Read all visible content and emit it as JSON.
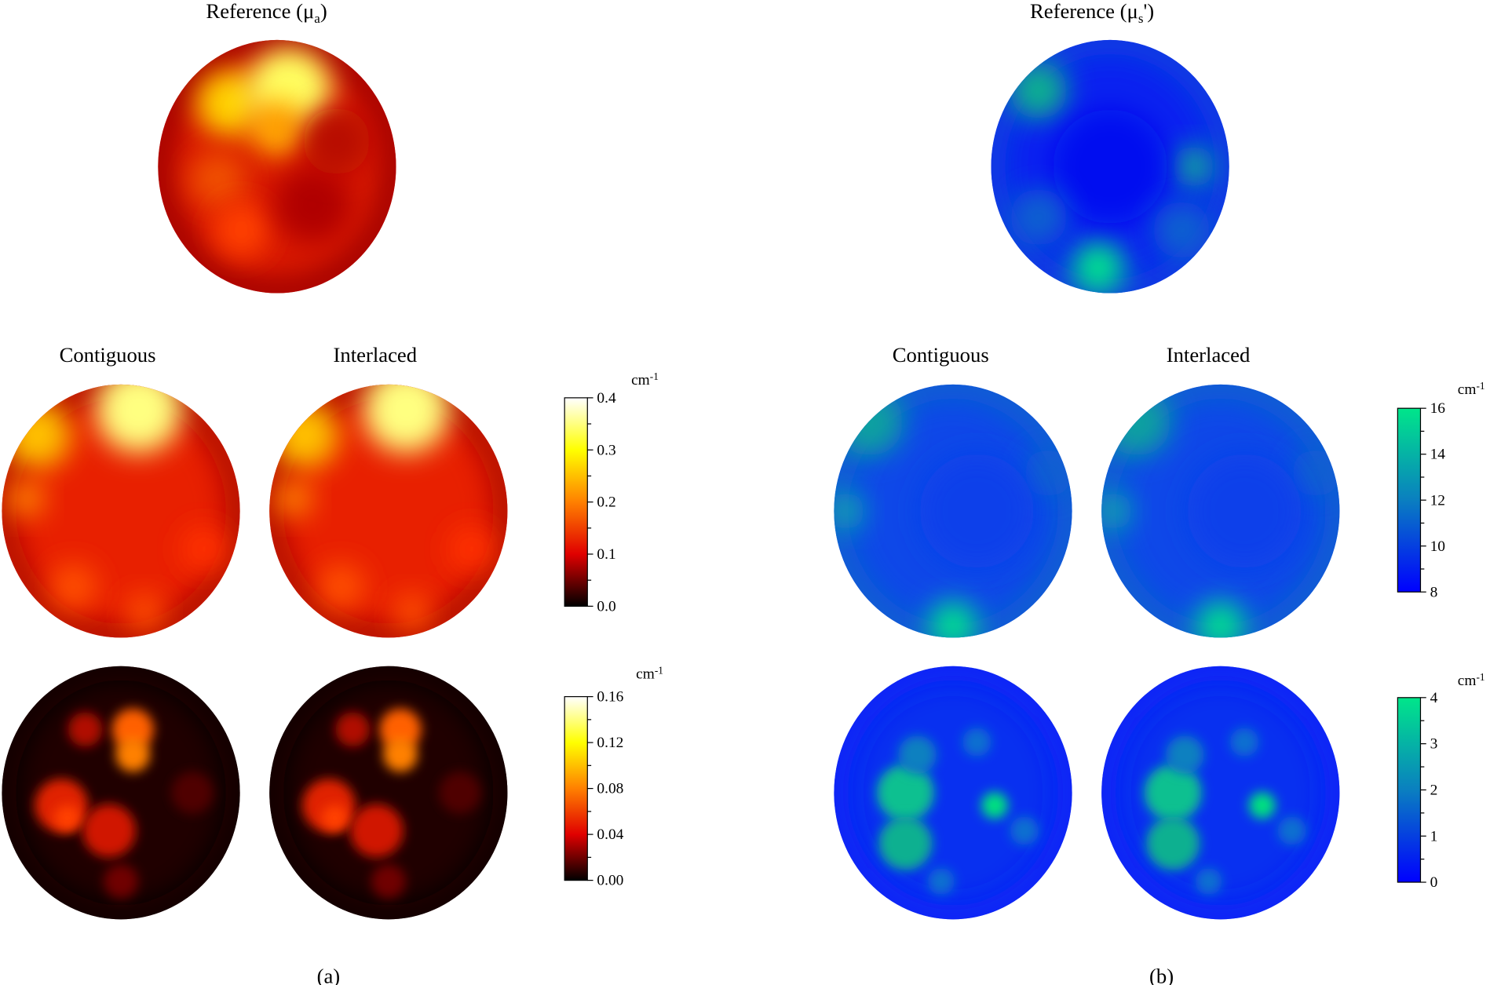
{
  "panels": [
    {
      "label": "(a)",
      "reference_title": {
        "prefix": "Reference (μ",
        "sub": "a",
        "suffix": ")"
      },
      "columns": [
        "Contiguous",
        "Interlaced"
      ],
      "colorbars": [
        {
          "unit": "cm",
          "exponent": "-1",
          "range": [
            0,
            0.4
          ],
          "colormap": [
            "#000000",
            "#e00000",
            "#ff8000",
            "#ffff00",
            "#ffffff"
          ],
          "ticks": [
            {
              "value": 0,
              "label": "0.0"
            },
            {
              "value": 0.1,
              "label": "0.1"
            },
            {
              "value": 0.2,
              "label": "0.2"
            },
            {
              "value": 0.3,
              "label": "0.3"
            },
            {
              "value": 0.4,
              "label": "0.4"
            }
          ]
        },
        {
          "unit": "cm",
          "exponent": "-1",
          "range": [
            0,
            0.16
          ],
          "colormap": [
            "#000000",
            "#e00000",
            "#ff8000",
            "#ffff00",
            "#ffffff"
          ],
          "ticks": [
            {
              "value": 0,
              "label": "0.00"
            },
            {
              "value": 0.04,
              "label": "0.04"
            },
            {
              "value": 0.08,
              "label": "0.08"
            },
            {
              "value": 0.12,
              "label": "0.12"
            },
            {
              "value": 0.16,
              "label": "0.16"
            }
          ]
        }
      ]
    },
    {
      "label": "(b)",
      "reference_title": {
        "prefix": "Reference (μ",
        "sub": "s",
        "suffix": "')"
      },
      "columns": [
        "Contiguous",
        "Interlaced"
      ],
      "colorbars": [
        {
          "unit": "cm",
          "exponent": "-1",
          "range": [
            8,
            16
          ],
          "colormap": [
            "#0000ff",
            "#0a7fc0",
            "#00e68a"
          ],
          "ticks": [
            8,
            10,
            12,
            14,
            16
          ]
        },
        {
          "unit": "cm",
          "exponent": "-1",
          "range": [
            0,
            4
          ],
          "colormap": [
            "#0000ff",
            "#0a7fc0",
            "#00e68a"
          ],
          "ticks": [
            0,
            1,
            2,
            3,
            4
          ]
        }
      ]
    }
  ]
}
